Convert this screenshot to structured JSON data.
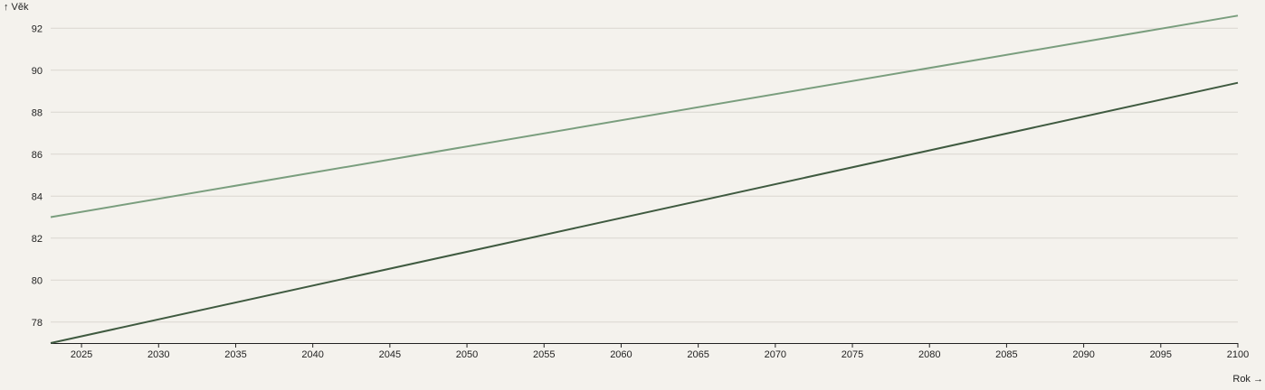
{
  "chart_data": {
    "type": "line",
    "title": "",
    "xlabel": "Rok →",
    "ylabel": "↑ Věk",
    "xlim": [
      2023,
      2100
    ],
    "ylim": [
      77,
      93
    ],
    "x_ticks": [
      2025,
      2030,
      2035,
      2040,
      2045,
      2050,
      2055,
      2060,
      2065,
      2070,
      2075,
      2080,
      2085,
      2090,
      2095,
      2100
    ],
    "y_ticks": [
      78,
      80,
      82,
      84,
      86,
      88,
      90,
      92
    ],
    "grid": true,
    "series": [
      {
        "color": "#7a9e7e",
        "x": [
          2023,
          2100
        ],
        "y": [
          83.0,
          92.6
        ]
      },
      {
        "color": "#3f5a40",
        "x": [
          2023,
          2100
        ],
        "y": [
          77.0,
          89.4
        ]
      }
    ]
  }
}
